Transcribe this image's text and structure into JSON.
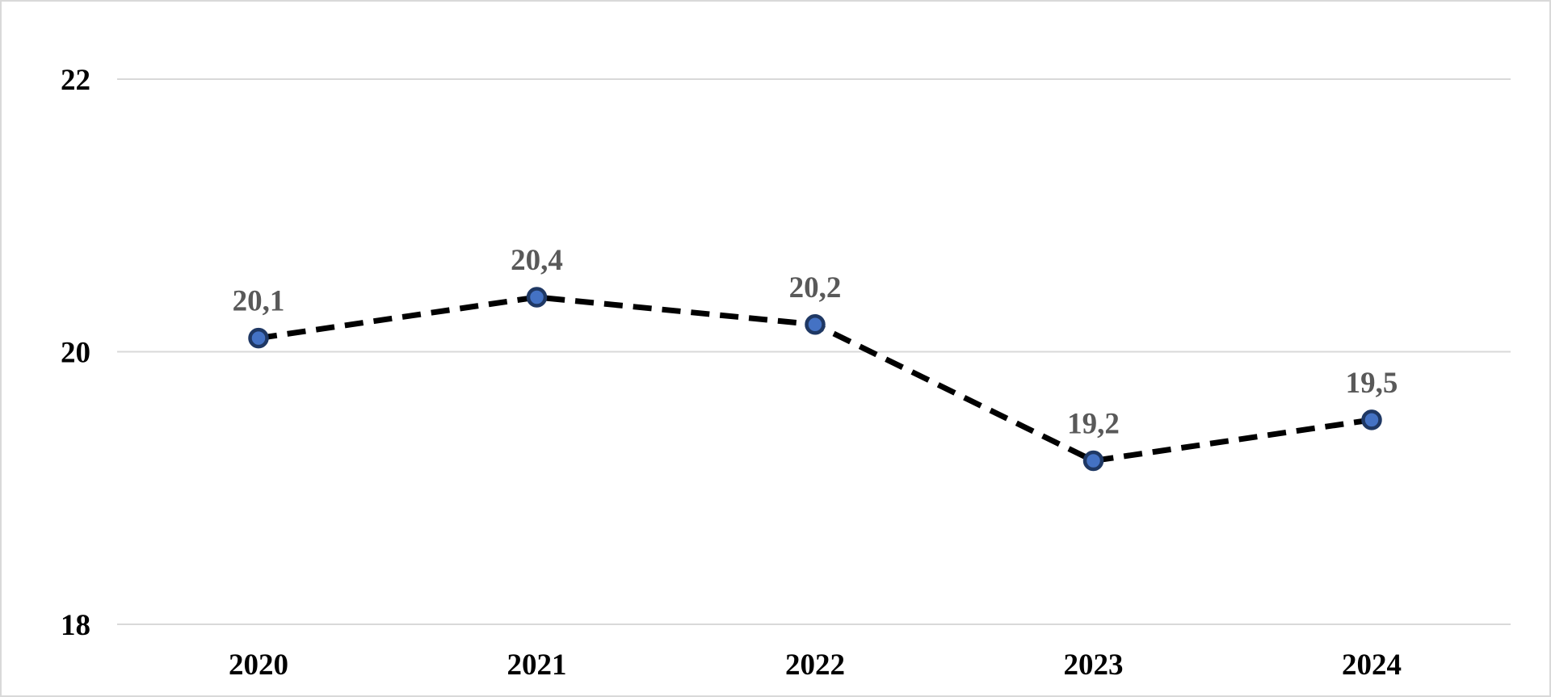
{
  "chart_data": {
    "type": "line",
    "title": "",
    "xlabel": "",
    "ylabel": "",
    "categories": [
      "2020",
      "2021",
      "2022",
      "2023",
      "2024"
    ],
    "series": [
      {
        "name": "value",
        "values": [
          20.1,
          20.4,
          20.2,
          19.2,
          19.5
        ],
        "labels": [
          "20,1",
          "20,4",
          "20,2",
          "19,2",
          "19,5"
        ]
      }
    ],
    "y_ticks": [
      {
        "value": 22,
        "label": "22"
      },
      {
        "value": 20,
        "label": "20"
      },
      {
        "value": 18,
        "label": "18"
      }
    ],
    "ylim": [
      18,
      22
    ],
    "grid": true,
    "legend_position": "none",
    "line_style": "dashed",
    "marker": "circle",
    "data_labels_position": "above",
    "colors": {
      "line": "#000000",
      "marker_fill": "#4472C4",
      "marker_stroke": "#1F3864",
      "gridline": "#D9D9D9",
      "tick_label": "#000000",
      "x_label": "#000000",
      "data_label": "#595959",
      "frame_border": "#D9D9D9",
      "background": "#FFFFFF"
    }
  }
}
